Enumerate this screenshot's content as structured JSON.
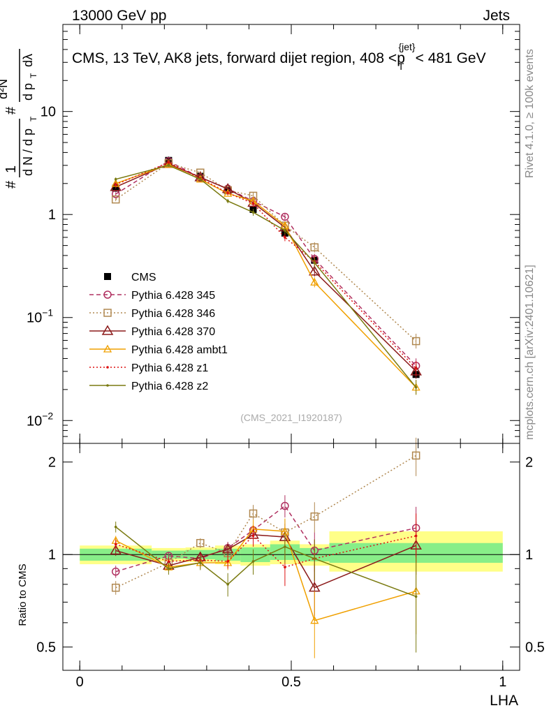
{
  "header": {
    "left": "13000 GeV pp",
    "right": "Jets",
    "title_prefix": "CMS, 13 TeV, AK8 jets, forward dijet region, 408 <",
    "title_var": "p",
    "title_sub": "T",
    "title_sup": "{jet}",
    "title_suffix": "< 481 GeV",
    "side_right_top": "Rivet 4.1.0, ≥ 100k events",
    "side_right_bottom": "mcplots.cern.ch [arXiv:2401.10621]",
    "watermark": "(CMS_2021_I1920187)"
  },
  "chart_data": [
    {
      "type": "line",
      "panel": "main",
      "yscale": "log",
      "ylim": [
        0.006,
        70
      ],
      "xlim": [
        -0.04,
        1.04
      ],
      "ylabel": "1/dN/dpT # d²N/dpT dλ",
      "yticks": [
        {
          "value": 0.01,
          "base": "10",
          "exp": "−2"
        },
        {
          "value": 0.1,
          "base": "10",
          "exp": "−1"
        },
        {
          "value": 1,
          "base": "1",
          "exp": ""
        },
        {
          "value": 10,
          "base": "10",
          "exp": ""
        }
      ],
      "x": [
        0.085,
        0.21,
        0.285,
        0.35,
        0.41,
        0.485,
        0.555,
        0.795
      ],
      "series": [
        {
          "name": "CMS",
          "color": "#000000",
          "marker": "square",
          "line": "none",
          "values": [
            1.8,
            3.35,
            2.35,
            1.7,
            1.12,
            0.66,
            0.36,
            0.028
          ],
          "err": [
            0.07,
            0.09,
            0.06,
            0.07,
            0.09,
            0.07,
            0.06,
            0.07
          ]
        },
        {
          "name": "Pythia 6.428 345",
          "color": "#b03060",
          "marker": "circle",
          "line": "dashed",
          "values": [
            1.58,
            3.3,
            2.28,
            1.78,
            1.35,
            0.95,
            0.37,
            0.034
          ],
          "err": [
            0.04,
            0.03,
            0.04,
            0.05,
            0.08,
            0.09,
            0.12,
            0.18
          ]
        },
        {
          "name": "Pythia 6.428 346",
          "color": "#b08850",
          "marker": "square-open",
          "line": "dotted",
          "values": [
            1.4,
            3.15,
            2.55,
            1.72,
            1.52,
            0.78,
            0.48,
            0.059
          ],
          "err": [
            0.04,
            0.03,
            0.04,
            0.05,
            0.08,
            0.09,
            0.12,
            0.18
          ]
        },
        {
          "name": "Pythia 6.428 370",
          "color": "#8b1a1a",
          "marker": "triangle-open",
          "line": "solid",
          "values": [
            1.85,
            3.1,
            2.3,
            1.77,
            1.3,
            0.75,
            0.28,
            0.03
          ],
          "err": [
            0.04,
            0.03,
            0.04,
            0.05,
            0.08,
            0.09,
            0.12,
            0.18
          ]
        },
        {
          "name": "Pythia 6.428 ambt1",
          "color": "#f0a000",
          "marker": "triangle-open-small",
          "line": "solid",
          "values": [
            2.0,
            3.05,
            2.2,
            1.6,
            1.35,
            0.78,
            0.22,
            0.021
          ],
          "err": [
            0.04,
            0.03,
            0.04,
            0.05,
            0.08,
            0.09,
            0.12,
            0.18
          ]
        },
        {
          "name": "Pythia 6.428 z1",
          "color": "#dd1111",
          "marker": "dot",
          "line": "dotted",
          "values": [
            1.95,
            3.2,
            2.25,
            1.62,
            1.28,
            0.6,
            0.35,
            0.032
          ],
          "err": [
            0.04,
            0.03,
            0.04,
            0.05,
            0.08,
            0.09,
            0.12,
            0.18
          ]
        },
        {
          "name": "Pythia 6.428 z2",
          "color": "#7a7a10",
          "marker": "dot",
          "line": "solid",
          "values": [
            2.2,
            3.0,
            2.2,
            1.35,
            1.05,
            0.7,
            0.34,
            0.021
          ],
          "err": [
            0.04,
            0.03,
            0.04,
            0.05,
            0.08,
            0.09,
            0.12,
            0.18
          ]
        }
      ]
    },
    {
      "type": "line",
      "panel": "ratio",
      "ylabel": "Ratio to CMS",
      "ylim": [
        0.42,
        2.3
      ],
      "xlabel": "LHA",
      "xticks": [
        {
          "value": 0,
          "label": "0"
        },
        {
          "value": 0.5,
          "label": "0.5"
        },
        {
          "value": 1,
          "label": "1"
        }
      ],
      "yticks": [
        {
          "value": 0.5,
          "label": "0.5"
        },
        {
          "value": 1,
          "label": "1"
        },
        {
          "value": 2,
          "label": "2"
        }
      ],
      "bands": [
        {
          "x0": 0.0,
          "x1": 0.17,
          "inner": [
            0.955,
            1.045
          ],
          "outer": [
            0.93,
            1.07
          ]
        },
        {
          "x0": 0.17,
          "x1": 0.25,
          "inner": [
            0.97,
            1.03
          ],
          "outer": [
            0.95,
            1.05
          ]
        },
        {
          "x0": 0.25,
          "x1": 0.32,
          "inner": [
            0.965,
            1.035
          ],
          "outer": [
            0.945,
            1.055
          ]
        },
        {
          "x0": 0.32,
          "x1": 0.38,
          "inner": [
            0.955,
            1.045
          ],
          "outer": [
            0.93,
            1.07
          ]
        },
        {
          "x0": 0.38,
          "x1": 0.45,
          "inner": [
            0.945,
            1.055
          ],
          "outer": [
            0.92,
            1.08
          ]
        },
        {
          "x0": 0.45,
          "x1": 0.52,
          "inner": [
            0.96,
            1.08
          ],
          "outer": [
            0.93,
            1.11
          ]
        },
        {
          "x0": 0.52,
          "x1": 0.59,
          "inner": [
            0.95,
            1.05
          ],
          "outer": [
            0.92,
            1.08
          ]
        },
        {
          "x0": 0.59,
          "x1": 1.0,
          "inner": [
            0.94,
            1.09
          ],
          "outer": [
            0.88,
            1.19
          ]
        }
      ],
      "x": [
        0.085,
        0.21,
        0.285,
        0.35,
        0.41,
        0.485,
        0.555,
        0.795
      ],
      "series": [
        {
          "name": "Pythia 6.428 345",
          "color": "#b03060",
          "marker": "circle",
          "line": "dashed",
          "values": [
            0.88,
            0.99,
            0.97,
            1.05,
            1.2,
            1.44,
            1.03,
            1.22
          ],
          "err": [
            0.04,
            0.03,
            0.04,
            0.05,
            0.09,
            0.12,
            0.15,
            0.21
          ]
        },
        {
          "name": "Pythia 6.428 346",
          "color": "#b08850",
          "marker": "square-open",
          "line": "dotted",
          "values": [
            0.78,
            0.94,
            1.09,
            1.01,
            1.36,
            1.18,
            1.33,
            2.1
          ],
          "err": [
            0.04,
            0.03,
            0.04,
            0.05,
            0.09,
            0.12,
            0.15,
            0.3
          ]
        },
        {
          "name": "Pythia 6.428 370",
          "color": "#8b1a1a",
          "marker": "triangle-open",
          "line": "solid",
          "values": [
            1.03,
            0.92,
            0.98,
            1.04,
            1.16,
            1.14,
            0.78,
            1.07
          ],
          "err": [
            0.04,
            0.03,
            0.04,
            0.05,
            0.09,
            0.12,
            0.15,
            0.21
          ]
        },
        {
          "name": "Pythia 6.428 ambt1",
          "color": "#f0a000",
          "marker": "triangle-open-small",
          "line": "solid",
          "values": [
            1.11,
            0.91,
            0.94,
            0.94,
            1.21,
            1.19,
            0.61,
            0.76
          ],
          "err": [
            0.04,
            0.03,
            0.04,
            0.05,
            0.09,
            0.12,
            0.15,
            0.21
          ]
        },
        {
          "name": "Pythia 6.428 z1",
          "color": "#dd1111",
          "marker": "dot",
          "line": "dotted",
          "values": [
            1.08,
            0.95,
            0.96,
            0.95,
            1.15,
            0.91,
            0.97,
            1.15
          ],
          "err": [
            0.04,
            0.03,
            0.04,
            0.05,
            0.09,
            0.12,
            0.15,
            0.21
          ]
        },
        {
          "name": "Pythia 6.428 z2",
          "color": "#7a7a10",
          "marker": "dot",
          "line": "solid",
          "values": [
            1.23,
            0.9,
            0.94,
            0.8,
            0.95,
            1.06,
            0.97,
            0.73
          ],
          "err": [
            0.05,
            0.04,
            0.05,
            0.07,
            0.09,
            0.12,
            0.15,
            0.25
          ]
        }
      ]
    }
  ]
}
